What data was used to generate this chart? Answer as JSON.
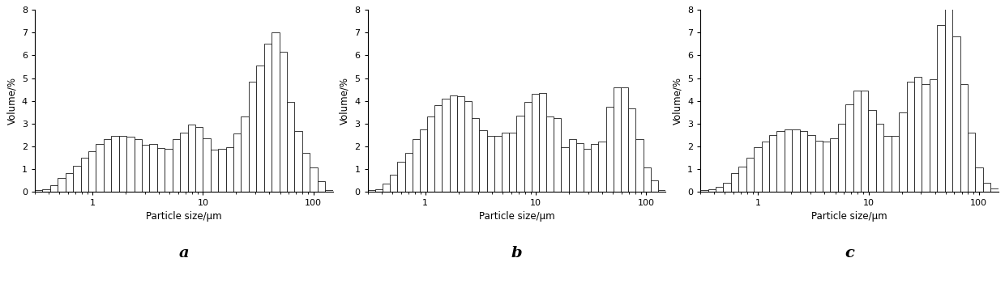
{
  "xlabel": "Particle size/μm",
  "ylabel": "Volume/%",
  "ylim": [
    0,
    8
  ],
  "yticks": [
    0,
    1,
    2,
    3,
    4,
    5,
    6,
    7,
    8
  ],
  "labels": [
    "a",
    "b",
    "c"
  ],
  "chart_a": {
    "values": [
      0.05,
      0.1,
      0.28,
      0.6,
      0.82,
      1.12,
      1.5,
      1.78,
      2.1,
      2.32,
      2.45,
      2.45,
      2.42,
      2.32,
      2.05,
      2.1,
      1.92,
      1.87,
      2.3,
      2.6,
      2.95,
      2.85,
      2.35,
      1.85,
      1.9,
      1.95,
      2.55,
      3.3,
      4.85,
      5.55,
      6.5,
      7.0,
      6.15,
      3.95,
      2.65,
      1.7,
      1.05,
      0.45,
      0.08
    ]
  },
  "chart_b": {
    "values": [
      0.05,
      0.1,
      0.35,
      0.75,
      1.3,
      1.7,
      2.3,
      2.75,
      3.3,
      3.8,
      4.1,
      4.25,
      4.2,
      4.0,
      3.25,
      2.7,
      2.45,
      2.45,
      2.6,
      2.6,
      3.35,
      3.95,
      4.3,
      4.35,
      3.3,
      3.25,
      1.95,
      2.3,
      2.15,
      1.9,
      2.1,
      2.2,
      3.75,
      4.6,
      4.6,
      3.65,
      2.3,
      1.05,
      0.5,
      0.08
    ]
  },
  "chart_c": {
    "values": [
      0.05,
      0.1,
      0.2,
      0.4,
      0.8,
      1.1,
      1.5,
      1.95,
      2.2,
      2.5,
      2.65,
      2.75,
      2.75,
      2.65,
      2.5,
      2.25,
      2.2,
      2.35,
      3.0,
      3.85,
      4.45,
      4.45,
      3.6,
      3.0,
      2.45,
      2.45,
      3.5,
      4.85,
      5.05,
      4.75,
      4.95,
      7.35,
      8.1,
      6.85,
      4.75,
      2.6,
      1.05,
      0.4,
      0.15
    ]
  },
  "bar_color": "#ffffff",
  "bar_edgecolor": "#1a1a1a",
  "bar_linewidth": 0.6,
  "background_color": "#ffffff",
  "label_fontsize": 14,
  "axis_fontsize": 8.5,
  "tick_fontsize": 8
}
